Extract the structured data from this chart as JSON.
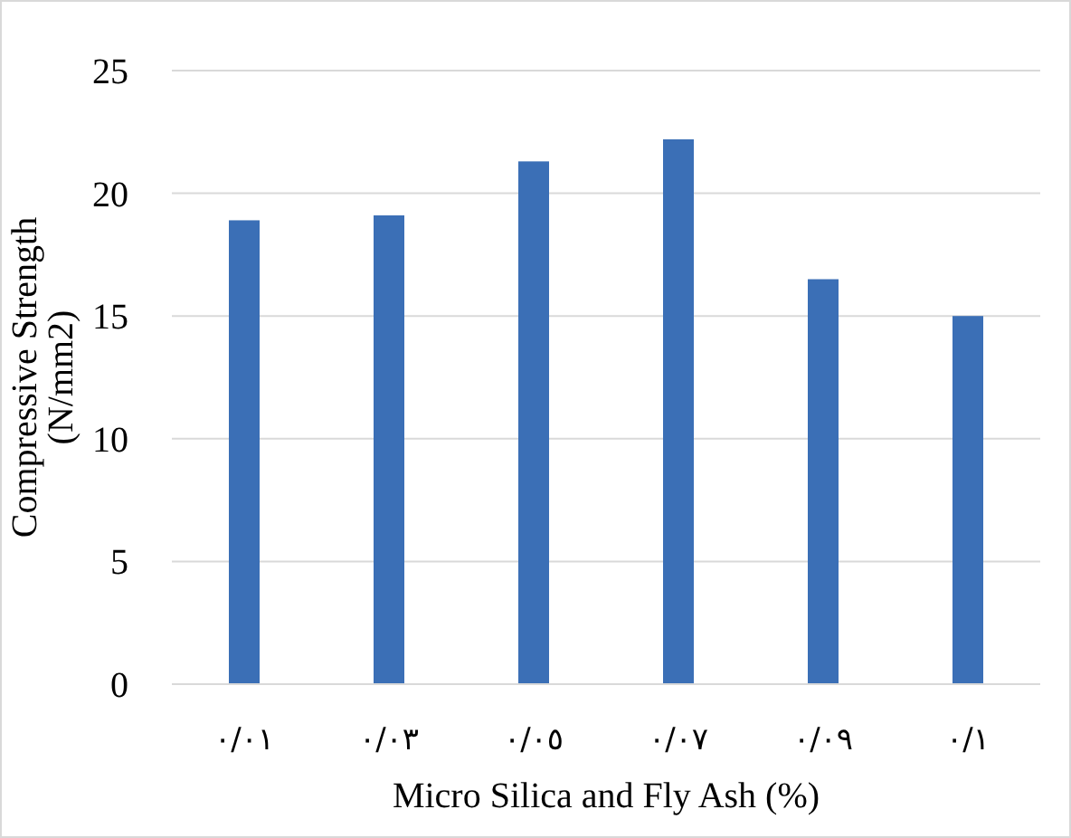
{
  "chart_data": {
    "type": "bar",
    "xlabel": "Micro Silica and Fly Ash (%)",
    "ylabel": "Compressive Strength (N/mm2)",
    "categories": [
      "٠/٠١",
      "٠/٠٣",
      "٠/٠٥",
      "٠/٠٧",
      "٠/٠٩",
      "٠/١"
    ],
    "values": [
      18.9,
      19.1,
      21.3,
      22.2,
      16.5,
      15.0
    ],
    "color": "#3b6fb6",
    "ylim": [
      0,
      25
    ],
    "yticks": [
      0,
      5,
      10,
      15,
      20,
      25
    ],
    "grid": "y"
  }
}
